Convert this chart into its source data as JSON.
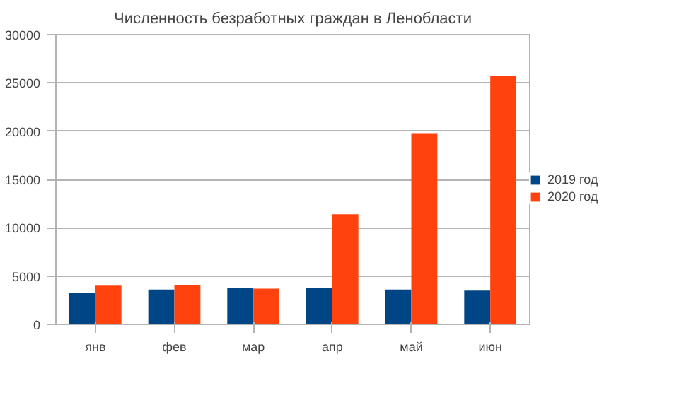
{
  "chart_data": {
    "type": "bar",
    "title": "Численность безработных граждан в Ленобласти",
    "categories": [
      "янв",
      "фев",
      "мар",
      "апр",
      "май",
      "июн"
    ],
    "series": [
      {
        "name": "2019 год",
        "color": "#004586",
        "values": [
          3300,
          3600,
          3800,
          3800,
          3600,
          3500
        ]
      },
      {
        "name": "2020 год",
        "color": "#ff420e",
        "values": [
          4000,
          4100,
          3700,
          11400,
          19800,
          25700
        ]
      }
    ],
    "ylim": [
      0,
      30000
    ],
    "yticks": [
      0,
      5000,
      10000,
      15000,
      20000,
      25000,
      30000
    ],
    "grid": "y",
    "legend": "right"
  }
}
